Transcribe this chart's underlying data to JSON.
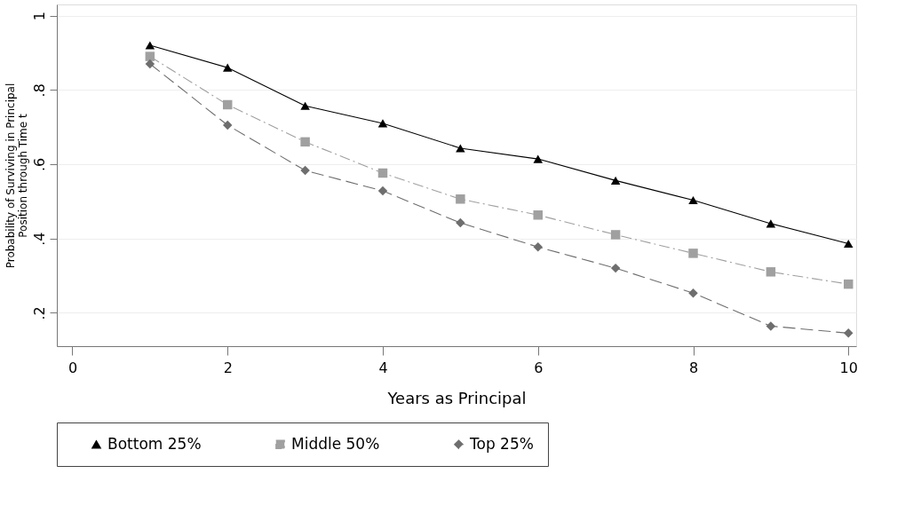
{
  "chart_data": {
    "type": "line",
    "xlabel": "Years as Principal",
    "ylabel": "Probability of Surviving in Principal\nPosition through Time t",
    "x": [
      1,
      2,
      3,
      4,
      5,
      6,
      7,
      8,
      9,
      10
    ],
    "series": [
      {
        "name": "Bottom 25%",
        "color": "#000000",
        "marker": "triangle",
        "line_style": "solid",
        "values": [
          0.92,
          0.86,
          0.757,
          0.71,
          0.643,
          0.614,
          0.556,
          0.503,
          0.44,
          0.386
        ]
      },
      {
        "name": "Middle 50%",
        "color": "#a0a0a0",
        "marker": "square",
        "line_style": "dashdot",
        "values": [
          0.89,
          0.76,
          0.66,
          0.576,
          0.506,
          0.463,
          0.41,
          0.36,
          0.31,
          0.277
        ]
      },
      {
        "name": "Top 25%",
        "color": "#6e6e6e",
        "marker": "diamond",
        "line_style": "dashed",
        "values": [
          0.87,
          0.705,
          0.583,
          0.528,
          0.442,
          0.377,
          0.32,
          0.253,
          0.164,
          0.145
        ]
      }
    ],
    "xlim": [
      -0.2,
      10.1
    ],
    "xticks": [
      0,
      2,
      4,
      6,
      8,
      10
    ],
    "ylim": [
      0.11,
      1.03
    ],
    "yticks": [
      {
        "value": 0.2,
        "label": ".2"
      },
      {
        "value": 0.4,
        "label": ".4"
      },
      {
        "value": 0.6,
        "label": ".6"
      },
      {
        "value": 0.8,
        "label": ".8"
      },
      1
    ],
    "grid": "y",
    "legend": "bottom"
  }
}
